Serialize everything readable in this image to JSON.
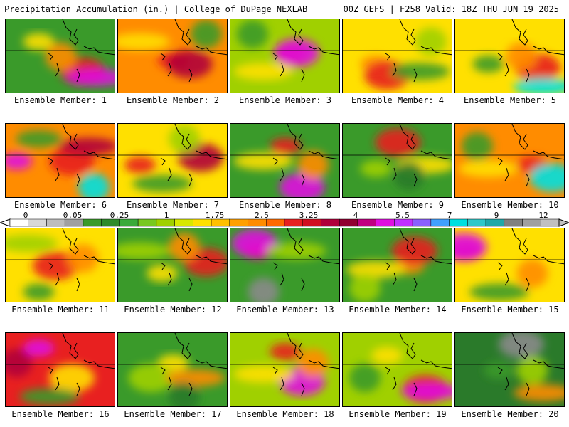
{
  "header": {
    "left_title": "Precipitation Accumulation (in.) | College of DuPage NEXLAB",
    "right_title": "00Z GEFS | F258 Valid: 18Z THU JUN 19 2025"
  },
  "caption_prefix": "Ensemble Member: ",
  "members": [
    {
      "label": "Ensemble Member: 1",
      "base": "#3a9a2a",
      "blobs": [
        [
          "#ffe000",
          0.3,
          0.3
        ],
        [
          "#e82020",
          0.7,
          0.7
        ],
        [
          "#e010e0",
          0.82,
          0.78
        ],
        [
          "#ff8c00",
          0.5,
          0.5
        ]
      ]
    },
    {
      "label": "Ensemble Member: 2",
      "base": "#ff8c00",
      "blobs": [
        [
          "#e82020",
          0.5,
          0.55
        ],
        [
          "#b0003a",
          0.65,
          0.6
        ],
        [
          "#ffe000",
          0.2,
          0.3
        ],
        [
          "#3a9a2a",
          0.8,
          0.2
        ]
      ]
    },
    {
      "label": "Ensemble Member: 3",
      "base": "#a0d000",
      "blobs": [
        [
          "#e82020",
          0.55,
          0.45
        ],
        [
          "#e010e0",
          0.6,
          0.45
        ],
        [
          "#ffe000",
          0.3,
          0.7
        ],
        [
          "#3a9a2a",
          0.2,
          0.2
        ]
      ]
    },
    {
      "label": "Ensemble Member: 4",
      "base": "#ffe000",
      "blobs": [
        [
          "#ff8c00",
          0.3,
          0.6
        ],
        [
          "#e82020",
          0.4,
          0.75
        ],
        [
          "#3a9a2a",
          0.7,
          0.7
        ],
        [
          "#a0d000",
          0.8,
          0.3
        ]
      ]
    },
    {
      "label": "Ensemble Member: 5",
      "base": "#ffe000",
      "blobs": [
        [
          "#3a9a2a",
          0.3,
          0.6
        ],
        [
          "#e82020",
          0.75,
          0.65
        ],
        [
          "#00e0e0",
          0.8,
          0.9
        ],
        [
          "#ff8c00",
          0.6,
          0.5
        ]
      ]
    },
    {
      "label": "Ensemble Member: 6",
      "base": "#ff8c00",
      "blobs": [
        [
          "#e010e0",
          0.1,
          0.5
        ],
        [
          "#e82020",
          0.6,
          0.5
        ],
        [
          "#b0003a",
          0.75,
          0.3
        ],
        [
          "#00e0e0",
          0.8,
          0.85
        ],
        [
          "#3a9a2a",
          0.3,
          0.2
        ]
      ]
    },
    {
      "label": "Ensemble Member: 7",
      "base": "#ffe000",
      "blobs": [
        [
          "#e82020",
          0.2,
          0.55
        ],
        [
          "#b0003a",
          0.75,
          0.45
        ],
        [
          "#3a9a2a",
          0.4,
          0.8
        ],
        [
          "#a0d000",
          0.6,
          0.2
        ]
      ]
    },
    {
      "label": "Ensemble Member: 8",
      "base": "#3a9a2a",
      "blobs": [
        [
          "#e82020",
          0.5,
          0.3
        ],
        [
          "#e010e0",
          0.65,
          0.85
        ],
        [
          "#ffe000",
          0.3,
          0.5
        ],
        [
          "#ff8c00",
          0.75,
          0.55
        ]
      ]
    },
    {
      "label": "Ensemble Member: 9",
      "base": "#3a9a2a",
      "blobs": [
        [
          "#a0d000",
          0.3,
          0.6
        ],
        [
          "#e82020",
          0.5,
          0.25
        ],
        [
          "#ffe000",
          0.75,
          0.55
        ],
        [
          "#2a7a2a",
          0.6,
          0.7
        ]
      ]
    },
    {
      "label": "Ensemble Member: 10",
      "base": "#ff8c00",
      "blobs": [
        [
          "#e82020",
          0.7,
          0.55
        ],
        [
          "#00e0e0",
          0.88,
          0.72
        ],
        [
          "#ffe000",
          0.3,
          0.6
        ],
        [
          "#3a9a2a",
          0.2,
          0.3
        ]
      ]
    },
    {
      "label": "Ensemble Member: 11",
      "base": "#ffe000",
      "blobs": [
        [
          "#3a9a2a",
          0.3,
          0.85
        ],
        [
          "#e82020",
          0.45,
          0.5
        ],
        [
          "#a0d000",
          0.2,
          0.2
        ],
        [
          "#ff8c00",
          0.7,
          0.4
        ]
      ]
    },
    {
      "label": "Ensemble Member: 12",
      "base": "#3a9a2a",
      "blobs": [
        [
          "#ffe000",
          0.4,
          0.6
        ],
        [
          "#e82020",
          0.8,
          0.45
        ],
        [
          "#a0d000",
          0.2,
          0.3
        ],
        [
          "#ff8c00",
          0.6,
          0.25
        ]
      ]
    },
    {
      "label": "Ensemble Member: 13",
      "base": "#3a9a2a",
      "blobs": [
        [
          "#e82020",
          0.25,
          0.3
        ],
        [
          "#e010e0",
          0.22,
          0.2
        ],
        [
          "#a0d000",
          0.6,
          0.3
        ],
        [
          "#8a8a8a",
          0.3,
          0.85
        ]
      ]
    },
    {
      "label": "Ensemble Member: 14",
      "base": "#3a9a2a",
      "blobs": [
        [
          "#ff8c00",
          0.6,
          0.5
        ],
        [
          "#e82020",
          0.65,
          0.3
        ],
        [
          "#ffe000",
          0.3,
          0.55
        ],
        [
          "#a0d000",
          0.2,
          0.8
        ]
      ]
    },
    {
      "label": "Ensemble Member: 15",
      "base": "#ffe000",
      "blobs": [
        [
          "#e82020",
          0.1,
          0.3
        ],
        [
          "#e010e0",
          0.08,
          0.25
        ],
        [
          "#3a9a2a",
          0.4,
          0.85
        ],
        [
          "#ff8c00",
          0.7,
          0.6
        ]
      ]
    },
    {
      "label": "Ensemble Member: 16",
      "base": "#e82020",
      "blobs": [
        [
          "#e010e0",
          0.3,
          0.2
        ],
        [
          "#ffe000",
          0.6,
          0.6
        ],
        [
          "#3a9a2a",
          0.4,
          0.85
        ],
        [
          "#b0003a",
          0.1,
          0.4
        ]
      ]
    },
    {
      "label": "Ensemble Member: 17",
      "base": "#3a9a2a",
      "blobs": [
        [
          "#ffe000",
          0.5,
          0.4
        ],
        [
          "#a0d000",
          0.3,
          0.6
        ],
        [
          "#ff8c00",
          0.7,
          0.6
        ],
        [
          "#2a7a2a",
          0.6,
          0.85
        ]
      ]
    },
    {
      "label": "Ensemble Member: 18",
      "base": "#a0d000",
      "blobs": [
        [
          "#e82020",
          0.5,
          0.25
        ],
        [
          "#e010e0",
          0.65,
          0.65
        ],
        [
          "#ffe000",
          0.3,
          0.55
        ],
        [
          "#ff8c00",
          0.75,
          0.4
        ]
      ]
    },
    {
      "label": "Ensemble Member: 19",
      "base": "#a0d000",
      "blobs": [
        [
          "#ffe000",
          0.4,
          0.3
        ],
        [
          "#e82020",
          0.75,
          0.75
        ],
        [
          "#e010e0",
          0.8,
          0.78
        ],
        [
          "#3a9a2a",
          0.2,
          0.6
        ]
      ]
    },
    {
      "label": "Ensemble Member: 20",
      "base": "#2a7a2a",
      "blobs": [
        [
          "#3a9a2a",
          0.4,
          0.5
        ],
        [
          "#8a8a8a",
          0.6,
          0.15
        ],
        [
          "#ff8c00",
          0.8,
          0.8
        ],
        [
          "#a0d000",
          0.7,
          0.5
        ]
      ]
    }
  ],
  "colorbar": {
    "labels": [
      "0",
      "0.05",
      "0.25",
      "1",
      "1.75",
      "2.5",
      "3.25",
      "4",
      "5.5",
      "7",
      "9",
      "12"
    ],
    "colors": [
      "#ffffff",
      "#d8d8d8",
      "#bdbdbd",
      "#a0a0a0",
      "#3a9a2a",
      "#2f8a2a",
      "#3aaa3a",
      "#78c820",
      "#a0d000",
      "#d8e800",
      "#ffe000",
      "#ffc000",
      "#ffa000",
      "#ff8c00",
      "#ff6a00",
      "#e82020",
      "#d01020",
      "#b0003a",
      "#900030",
      "#c00080",
      "#e010e0",
      "#c030ff",
      "#8a60ff",
      "#40a0ff",
      "#00e0e0",
      "#30c8c8",
      "#20a8a8",
      "#808080",
      "#a0a0a0",
      "#c0c0c0"
    ]
  }
}
